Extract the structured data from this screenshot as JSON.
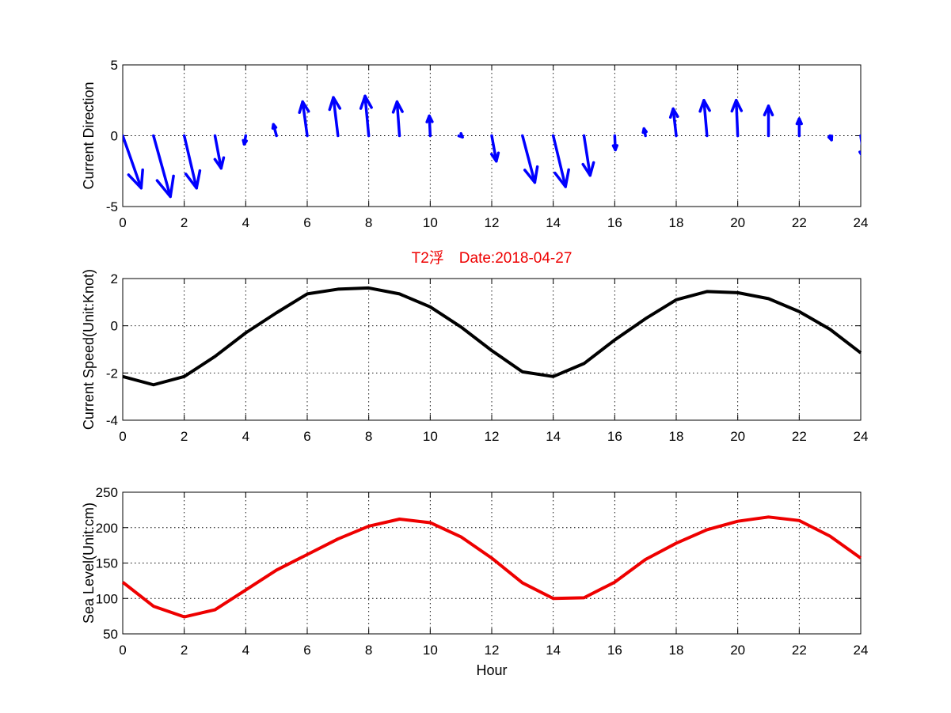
{
  "title": "T2浮　Date:2018-04-27",
  "colors": {
    "direction": "#0000ff",
    "speed": "#000000",
    "sea_level": "#ee0000",
    "title": "#ee0000"
  },
  "chart_data": [
    {
      "type": "quiver",
      "ylabel": "Current Direction",
      "xlabel": "",
      "xlim": [
        0,
        24
      ],
      "ylim": [
        -5,
        5
      ],
      "xticks": [
        0,
        2,
        4,
        6,
        8,
        10,
        12,
        14,
        16,
        18,
        20,
        22,
        24
      ],
      "yticks": [
        -5,
        0,
        5
      ],
      "grid": true,
      "x": [
        0,
        1,
        2,
        3,
        4,
        5,
        6,
        7,
        8,
        9,
        10,
        11,
        12,
        13,
        14,
        15,
        16,
        17,
        18,
        19,
        20,
        21,
        22,
        23,
        24
      ],
      "u": [
        0.6,
        0.55,
        0.4,
        0.2,
        -0.05,
        -0.1,
        -0.15,
        -0.15,
        -0.12,
        -0.08,
        -0.03,
        0.05,
        0.15,
        0.4,
        0.4,
        0.2,
        0.02,
        -0.05,
        -0.1,
        -0.1,
        -0.05,
        0,
        0,
        0.05,
        0.1
      ],
      "v": [
        -3.7,
        -4.3,
        -3.7,
        -2.3,
        -0.6,
        0.8,
        2.4,
        2.7,
        2.8,
        2.4,
        1.4,
        -0.1,
        -1.8,
        -3.3,
        -3.6,
        -2.8,
        -1.0,
        0.5,
        1.9,
        2.5,
        2.5,
        2.1,
        1.2,
        -0.3,
        -1.6
      ]
    },
    {
      "type": "line",
      "ylabel": "Current Speed(Unit:Knot)",
      "xlabel": "",
      "xlim": [
        0,
        24
      ],
      "ylim": [
        -4,
        2
      ],
      "xticks": [
        0,
        2,
        4,
        6,
        8,
        10,
        12,
        14,
        16,
        18,
        20,
        22,
        24
      ],
      "yticks": [
        -4,
        -2,
        0,
        2
      ],
      "grid": true,
      "x": [
        0,
        1,
        2,
        3,
        4,
        5,
        6,
        7,
        8,
        9,
        10,
        11,
        12,
        13,
        14,
        15,
        16,
        17,
        18,
        19,
        20,
        21,
        22,
        23,
        24
      ],
      "series": [
        {
          "values": [
            -2.15,
            -2.5,
            -2.15,
            -1.3,
            -0.3,
            0.55,
            1.35,
            1.55,
            1.6,
            1.35,
            0.8,
            -0.05,
            -1.05,
            -1.95,
            -2.15,
            -1.6,
            -0.6,
            0.3,
            1.1,
            1.45,
            1.4,
            1.15,
            0.6,
            -0.15,
            -1.15
          ]
        }
      ]
    },
    {
      "type": "line",
      "ylabel": "Sea Level(Unit:cm)",
      "xlabel": "Hour",
      "xlim": [
        0,
        24
      ],
      "ylim": [
        50,
        250
      ],
      "xticks": [
        0,
        2,
        4,
        6,
        8,
        10,
        12,
        14,
        16,
        18,
        20,
        22,
        24
      ],
      "yticks": [
        50,
        100,
        150,
        200,
        250
      ],
      "grid": true,
      "x": [
        0,
        1,
        2,
        3,
        4,
        5,
        6,
        7,
        8,
        9,
        10,
        11,
        12,
        13,
        14,
        15,
        16,
        17,
        18,
        19,
        20,
        21,
        22,
        23,
        24
      ],
      "series": [
        {
          "values": [
            123,
            89,
            74,
            84,
            112,
            140,
            162,
            184,
            202,
            212,
            207,
            187,
            157,
            122,
            100,
            101,
            123,
            155,
            178,
            197,
            209,
            215,
            210,
            188,
            157
          ]
        }
      ]
    }
  ]
}
